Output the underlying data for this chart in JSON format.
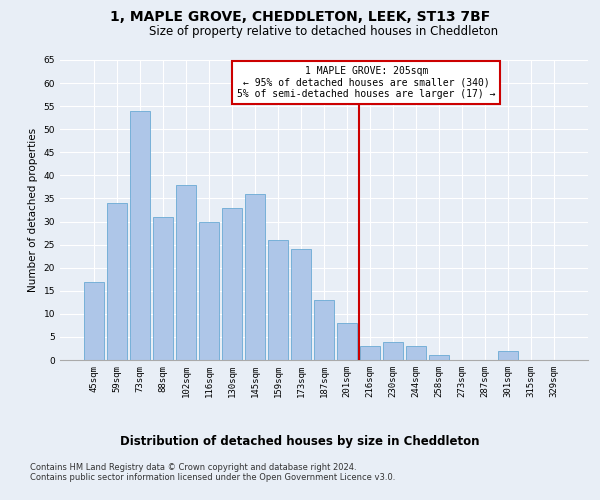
{
  "title": "1, MAPLE GROVE, CHEDDLETON, LEEK, ST13 7BF",
  "subtitle": "Size of property relative to detached houses in Cheddleton",
  "xlabel": "Distribution of detached houses by size in Cheddleton",
  "ylabel": "Number of detached properties",
  "categories": [
    "45sqm",
    "59sqm",
    "73sqm",
    "88sqm",
    "102sqm",
    "116sqm",
    "130sqm",
    "145sqm",
    "159sqm",
    "173sqm",
    "187sqm",
    "201sqm",
    "216sqm",
    "230sqm",
    "244sqm",
    "258sqm",
    "273sqm",
    "287sqm",
    "301sqm",
    "315sqm",
    "329sqm"
  ],
  "values": [
    17,
    34,
    54,
    31,
    38,
    30,
    33,
    36,
    26,
    24,
    13,
    8,
    3,
    4,
    3,
    1,
    0,
    0,
    2,
    0,
    0
  ],
  "bar_color": "#aec6e8",
  "bar_edge_color": "#6aaad4",
  "background_color": "#e8eef6",
  "grid_color": "#ffffff",
  "vline_x": 11.5,
  "vline_color": "#cc0000",
  "annotation_text": "1 MAPLE GROVE: 205sqm\n← 95% of detached houses are smaller (340)\n5% of semi-detached houses are larger (17) →",
  "annotation_box_color": "#cc0000",
  "footer_line1": "Contains HM Land Registry data © Crown copyright and database right 2024.",
  "footer_line2": "Contains public sector information licensed under the Open Government Licence v3.0.",
  "ylim": [
    0,
    65
  ],
  "yticks": [
    0,
    5,
    10,
    15,
    20,
    25,
    30,
    35,
    40,
    45,
    50,
    55,
    60,
    65
  ],
  "title_fontsize": 10,
  "subtitle_fontsize": 8.5,
  "xlabel_fontsize": 8.5,
  "ylabel_fontsize": 7.5,
  "tick_fontsize": 6.5,
  "annotation_fontsize": 7,
  "footer_fontsize": 6
}
